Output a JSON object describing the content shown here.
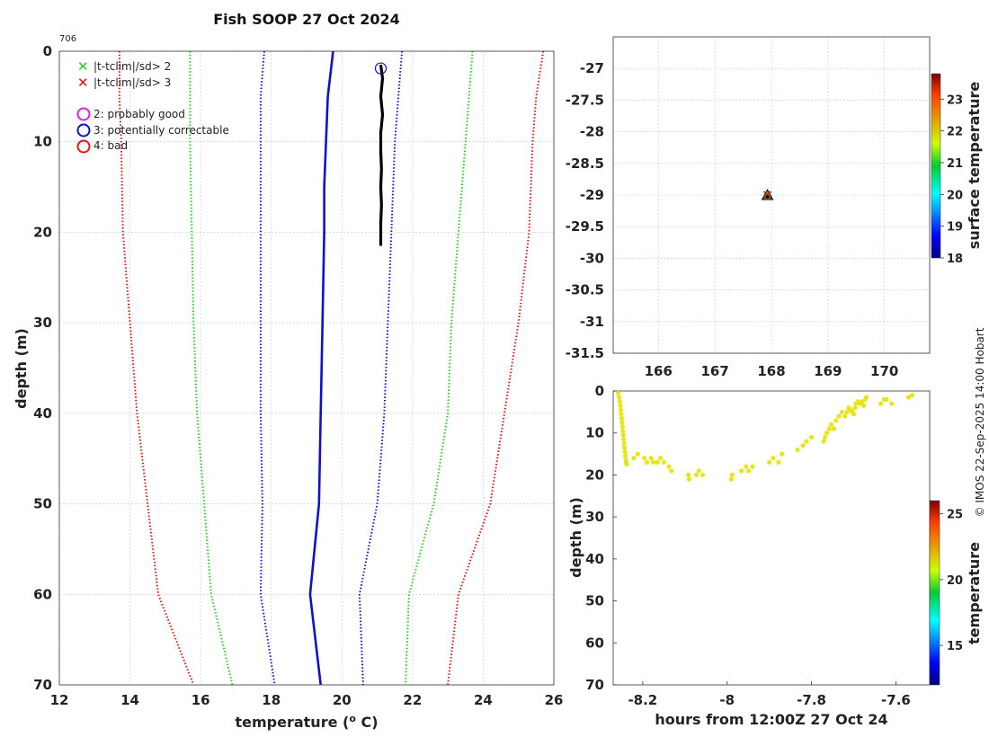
{
  "title": "Fish SOOP 27 Oct 2024",
  "profile_id": "706",
  "credit": "© IMOS 22-Sep-2025 14:00 Hobart",
  "legend": {
    "x2": "|t-tclim|/sd> 2",
    "x3": "|t-tclim|/sd> 3",
    "flag2": "2: probably good",
    "flag3": "3: potentially correctable",
    "flag4": "4: bad"
  },
  "colors": {
    "profile": "#000000",
    "clim_mean": "#1010cc",
    "sd1": "#1010cc",
    "sd2": "#22cc22",
    "sd3": "#dd1111",
    "flag2": "#e020e0",
    "flag3": "#1010cc",
    "flag4": "#ee1111",
    "track_points": "#e6e61a"
  },
  "chart_data": [
    {
      "type": "line",
      "name": "profile",
      "xlabel": "temperature (",
      "xlabel_sup": "o",
      "xlabel_end": " C)",
      "ylabel": "depth (m)",
      "xlim": [
        12,
        26
      ],
      "ylim": [
        0,
        70
      ],
      "xticks": [
        12,
        14,
        16,
        18,
        20,
        22,
        24,
        26
      ],
      "yticks": [
        0,
        10,
        20,
        30,
        40,
        50,
        60,
        70
      ],
      "series": [
        {
          "name": "climatology mean",
          "style": "solid",
          "color": "clim_mean",
          "points": [
            [
              19.75,
              0
            ],
            [
              19.6,
              5
            ],
            [
              19.55,
              10
            ],
            [
              19.5,
              15
            ],
            [
              19.5,
              20
            ],
            [
              19.45,
              30
            ],
            [
              19.4,
              40
            ],
            [
              19.35,
              50
            ],
            [
              19.1,
              60
            ],
            [
              19.4,
              70
            ]
          ]
        },
        {
          "name": "mean - 1 sd",
          "style": "dotted",
          "color": "sd1",
          "points": [
            [
              17.8,
              0
            ],
            [
              17.7,
              5
            ],
            [
              17.7,
              10
            ],
            [
              17.7,
              20
            ],
            [
              17.7,
              30
            ],
            [
              17.7,
              40
            ],
            [
              17.75,
              50
            ],
            [
              17.7,
              60
            ],
            [
              18.1,
              70
            ]
          ]
        },
        {
          "name": "mean + 1 sd",
          "style": "dotted",
          "color": "sd1",
          "points": [
            [
              21.7,
              0
            ],
            [
              21.6,
              5
            ],
            [
              21.5,
              10
            ],
            [
              21.4,
              20
            ],
            [
              21.3,
              30
            ],
            [
              21.2,
              40
            ],
            [
              21.0,
              50
            ],
            [
              20.5,
              60
            ],
            [
              20.6,
              70
            ]
          ]
        },
        {
          "name": "mean - 2 sd",
          "style": "dotted",
          "color": "sd2",
          "points": [
            [
              15.7,
              0
            ],
            [
              15.7,
              5
            ],
            [
              15.7,
              10
            ],
            [
              15.75,
              20
            ],
            [
              15.8,
              30
            ],
            [
              15.9,
              40
            ],
            [
              16.1,
              50
            ],
            [
              16.3,
              60
            ],
            [
              16.9,
              70
            ]
          ]
        },
        {
          "name": "mean + 2 sd",
          "style": "dotted",
          "color": "sd2",
          "points": [
            [
              23.7,
              0
            ],
            [
              23.6,
              5
            ],
            [
              23.5,
              10
            ],
            [
              23.3,
              20
            ],
            [
              23.1,
              30
            ],
            [
              23.0,
              40
            ],
            [
              22.6,
              50
            ],
            [
              21.9,
              60
            ],
            [
              21.8,
              70
            ]
          ]
        },
        {
          "name": "mean - 3 sd",
          "style": "dotted",
          "color": "sd3",
          "points": [
            [
              13.7,
              0
            ],
            [
              13.7,
              5
            ],
            [
              13.75,
              10
            ],
            [
              13.8,
              20
            ],
            [
              14.0,
              30
            ],
            [
              14.2,
              40
            ],
            [
              14.5,
              50
            ],
            [
              14.8,
              60
            ],
            [
              15.8,
              70
            ]
          ]
        },
        {
          "name": "mean + 3 sd",
          "style": "dotted",
          "color": "sd3",
          "points": [
            [
              25.7,
              0
            ],
            [
              25.5,
              5
            ],
            [
              25.4,
              10
            ],
            [
              25.3,
              20
            ],
            [
              25.0,
              30
            ],
            [
              24.6,
              40
            ],
            [
              24.2,
              50
            ],
            [
              23.3,
              60
            ],
            [
              23.0,
              70
            ]
          ]
        },
        {
          "name": "observed profile",
          "style": "solid-thick",
          "color": "profile",
          "points": [
            [
              21.1,
              1.5
            ],
            [
              21.15,
              3
            ],
            [
              21.1,
              5
            ],
            [
              21.15,
              7
            ],
            [
              21.1,
              9
            ],
            [
              21.1,
              11
            ],
            [
              21.12,
              13
            ],
            [
              21.1,
              15
            ],
            [
              21.12,
              17
            ],
            [
              21.1,
              19
            ],
            [
              21.1,
              21.5
            ]
          ]
        }
      ],
      "flag_markers": [
        {
          "x": 21.1,
          "y": 1,
          "flag": "flag3"
        }
      ]
    },
    {
      "type": "scatter",
      "name": "map",
      "xlim": [
        165.2,
        170.8
      ],
      "ylim": [
        -31.5,
        -26.5
      ],
      "xticks": [
        166,
        167,
        168,
        169,
        170
      ],
      "yticks": [
        -27,
        -27.5,
        -28,
        -28.5,
        -29,
        -29.5,
        -30,
        -30.5,
        -31,
        -31.5
      ],
      "points": [
        {
          "lon": 167.93,
          "lat": -29.0,
          "temperature": 21.0
        }
      ],
      "colorbar": {
        "label": "surface temperature",
        "range": [
          18,
          23.8
        ],
        "ticks": [
          18,
          19,
          20,
          21,
          22,
          23
        ]
      }
    },
    {
      "type": "scatter",
      "name": "depth-time",
      "xlabel": "hours from 12:00Z 27 Oct 24",
      "ylabel": "depth (m)",
      "xlim": [
        -8.27,
        -7.52
      ],
      "ylim": [
        0,
        70
      ],
      "xticks": [
        -8.2,
        -8,
        -7.8,
        -7.6
      ],
      "yticks": [
        0,
        10,
        20,
        30,
        40,
        50,
        60,
        70
      ],
      "colorbar": {
        "label": "temperature",
        "range": [
          12,
          26
        ],
        "ticks": [
          15,
          20,
          25
        ]
      },
      "x": [
        -8.258,
        -8.256,
        -8.254,
        -8.253,
        -8.252,
        -8.251,
        -8.25,
        -8.249,
        -8.248,
        -8.247,
        -8.246,
        -8.245,
        -8.244,
        -8.243,
        -8.242,
        -8.241,
        -8.24,
        -8.239,
        -8.238,
        -8.221,
        -8.212,
        -8.196,
        -8.19,
        -8.18,
        -8.175,
        -8.165,
        -8.158,
        -8.15,
        -8.138,
        -8.132,
        -8.092,
        -8.09,
        -8.073,
        -8.067,
        -8.058,
        -7.99,
        -7.988,
        -7.966,
        -7.955,
        -7.949,
        -7.94,
        -7.9,
        -7.891,
        -7.878,
        -7.87,
        -7.833,
        -7.82,
        -7.812,
        -7.8,
        -7.771,
        -7.768,
        -7.764,
        -7.758,
        -7.753,
        -7.747,
        -7.742,
        -7.735,
        -7.728,
        -7.721,
        -7.716,
        -7.712,
        -7.708,
        -7.703,
        -7.7,
        -7.697,
        -7.695,
        -7.69,
        -7.685,
        -7.68,
        -7.676,
        -7.672,
        -7.67,
        -7.636,
        -7.628,
        -7.622,
        -7.61,
        -7.57,
        -7.562
      ],
      "y": [
        0.5,
        1.5,
        2.5,
        3.5,
        4.5,
        5.5,
        6.5,
        7.5,
        8.5,
        9.5,
        10.5,
        11.5,
        12.5,
        13.5,
        14.5,
        15.5,
        16.5,
        17.0,
        17.5,
        16.0,
        15.0,
        16.0,
        17.0,
        16.0,
        17.0,
        17.0,
        16.0,
        17.0,
        18.0,
        19.0,
        20.0,
        21.0,
        20.0,
        19.0,
        20.0,
        21.0,
        20.0,
        19.0,
        18.0,
        19.0,
        18.0,
        17.0,
        16.0,
        17.0,
        15.0,
        14.0,
        13.0,
        12.0,
        11.0,
        12.0,
        11.0,
        10.0,
        9.0,
        8.0,
        9.0,
        7.0,
        6.0,
        5.0,
        6.0,
        5.0,
        4.0,
        4.5,
        5.0,
        5.5,
        4.0,
        3.0,
        2.5,
        3.0,
        2.5,
        3.5,
        2.0,
        1.5,
        3.0,
        2.0,
        2.0,
        3.0,
        1.5,
        1.0
      ],
      "temperature": [
        21.0,
        21.0,
        21.0,
        21.0,
        21.0,
        21.0,
        21.0,
        21.0,
        21.0,
        21.0,
        21.0,
        21.0,
        21.0,
        21.0,
        21.0,
        21.0,
        21.0,
        21.0,
        21.0,
        21.0,
        21.0,
        21.0,
        21.0,
        21.0,
        21.0,
        21.0,
        21.0,
        21.0,
        21.0,
        21.0,
        21.0,
        21.0,
        21.0,
        21.0,
        21.0,
        21.0,
        21.0,
        21.0,
        21.0,
        21.0,
        21.0,
        21.0,
        21.0,
        21.0,
        21.0,
        21.0,
        21.0,
        21.0,
        21.0,
        21.0,
        21.0,
        21.0,
        21.0,
        21.0,
        21.0,
        21.0,
        21.0,
        21.0,
        21.0,
        21.0,
        21.0,
        21.0,
        21.0,
        21.0,
        21.0,
        21.0,
        21.0,
        21.0,
        21.0,
        21.0,
        21.0,
        21.0,
        21.0,
        21.0,
        21.0,
        21.0,
        21.0,
        21.0
      ]
    }
  ]
}
